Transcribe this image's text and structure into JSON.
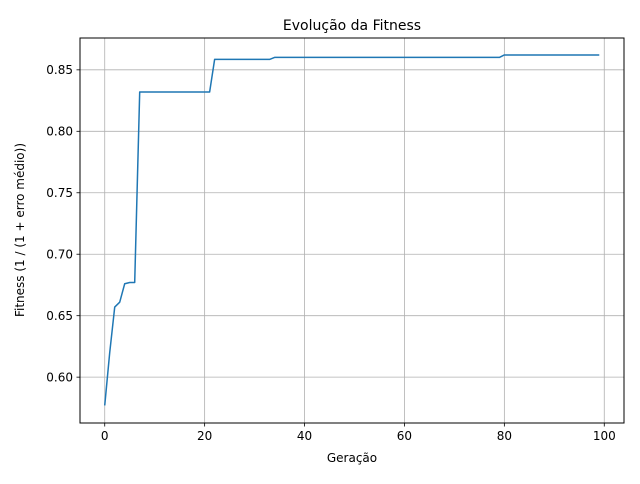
{
  "chart_data": {
    "type": "line",
    "title": "Evolução da Fitness",
    "xlabel": "Geração",
    "ylabel": "Fitness (1 / (1 + erro médio))",
    "xlim": [
      -4.95,
      103.95
    ],
    "ylim": [
      0.5627,
      0.8759
    ],
    "xticks": [
      0,
      20,
      40,
      60,
      80,
      100
    ],
    "yticks": [
      0.6,
      0.65,
      0.7,
      0.75,
      0.8,
      0.85
    ],
    "xtick_labels": [
      "0",
      "20",
      "40",
      "60",
      "80",
      "100"
    ],
    "ytick_labels": [
      "0.60",
      "0.65",
      "0.70",
      "0.75",
      "0.80",
      "0.85"
    ],
    "grid": true,
    "line_color": "#1f77b4",
    "series": [
      {
        "x": [
          0,
          1,
          2,
          3,
          4,
          5,
          6,
          7,
          8,
          9,
          10,
          11,
          12,
          13,
          14,
          15,
          16,
          17,
          18,
          19,
          20,
          21,
          22,
          23,
          24,
          25,
          26,
          27,
          28,
          29,
          30,
          31,
          32,
          33,
          34,
          35,
          36,
          37,
          38,
          39,
          40,
          41,
          42,
          43,
          44,
          45,
          46,
          47,
          48,
          49,
          50,
          51,
          52,
          53,
          54,
          55,
          56,
          57,
          58,
          59,
          60,
          61,
          62,
          63,
          64,
          65,
          66,
          67,
          68,
          69,
          70,
          71,
          72,
          73,
          74,
          75,
          76,
          77,
          78,
          79,
          80,
          81,
          82,
          83,
          84,
          85,
          86,
          87,
          88,
          89,
          90,
          91,
          92,
          93,
          94,
          95,
          96,
          97,
          98,
          99
        ],
        "y": [
          0.577,
          0.62,
          0.657,
          0.661,
          0.676,
          0.677,
          0.677,
          0.832,
          0.832,
          0.832,
          0.832,
          0.832,
          0.832,
          0.832,
          0.832,
          0.832,
          0.832,
          0.832,
          0.832,
          0.832,
          0.832,
          0.832,
          0.8585,
          0.8585,
          0.8585,
          0.8585,
          0.8585,
          0.8585,
          0.8585,
          0.8585,
          0.8585,
          0.8585,
          0.8585,
          0.8585,
          0.8601,
          0.8601,
          0.8601,
          0.8601,
          0.8601,
          0.8601,
          0.8601,
          0.8601,
          0.8601,
          0.8601,
          0.8601,
          0.8601,
          0.8601,
          0.8601,
          0.8601,
          0.8601,
          0.8601,
          0.8601,
          0.8601,
          0.8601,
          0.8601,
          0.8601,
          0.8601,
          0.8601,
          0.8601,
          0.8601,
          0.8601,
          0.8601,
          0.8601,
          0.8601,
          0.8601,
          0.8601,
          0.8601,
          0.8601,
          0.8601,
          0.8601,
          0.8601,
          0.8601,
          0.8601,
          0.8601,
          0.8601,
          0.8601,
          0.8601,
          0.8601,
          0.8601,
          0.8601,
          0.8621,
          0.8621,
          0.8621,
          0.8621,
          0.8621,
          0.8621,
          0.8621,
          0.8621,
          0.8621,
          0.8621,
          0.8621,
          0.8621,
          0.8621,
          0.8621,
          0.8621,
          0.8621,
          0.8621,
          0.8621,
          0.8621,
          0.8621
        ]
      }
    ]
  }
}
